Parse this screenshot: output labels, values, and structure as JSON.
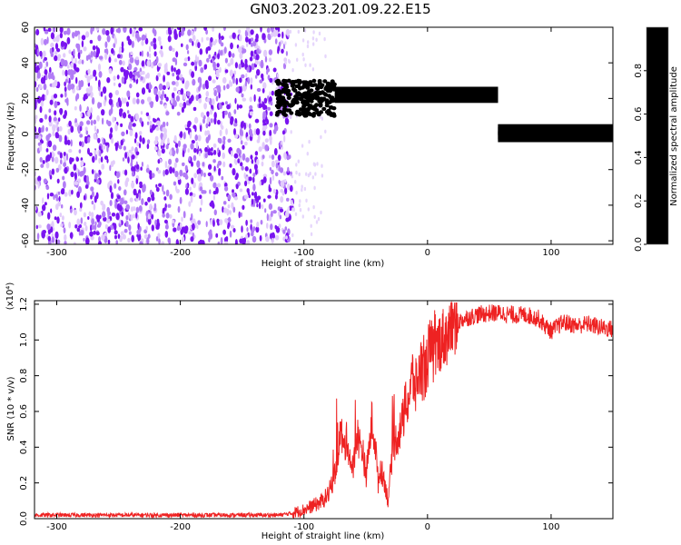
{
  "title": "GN03.2023.201.09.22.E15",
  "chart_data": [
    {
      "type": "heatmap",
      "xlabel": "Height of straight line (km)",
      "ylabel": "Frequency (Hz)",
      "xlim": [
        -318,
        150
      ],
      "ylim": [
        -62,
        60
      ],
      "xticks": [
        -300,
        -200,
        -100,
        0,
        100
      ],
      "yticks": [
        -60,
        -40,
        -20,
        0,
        20,
        40,
        60
      ],
      "colorbar": {
        "label": "Normalized spectral amplitude",
        "range": [
          0.0,
          1.0
        ],
        "ticks": [
          0.0,
          0.2,
          0.4,
          0.6,
          0.8
        ],
        "colors": [
          "#ffffff",
          "#c8a0f0",
          "#7f00ff",
          "#0000ff",
          "#00d8ff",
          "#00ff40",
          "#ffff00",
          "#ff8000",
          "#ff0000",
          "#ff0080"
        ]
      },
      "regions": [
        {
          "name": "broadband noise",
          "x": [
            -318,
            -115
          ],
          "freq": [
            -62,
            60
          ],
          "amplitude": [
            0.0,
            0.1
          ]
        },
        {
          "name": "onset band",
          "x": [
            -122,
            -75
          ],
          "freq": [
            10,
            30
          ],
          "amplitude": [
            0.1,
            0.5
          ]
        },
        {
          "name": "signal tone 1",
          "x": [
            -75,
            57
          ],
          "freq": [
            20,
            24
          ],
          "amplitude": [
            0.3,
            1.0
          ]
        },
        {
          "name": "signal tone 2",
          "x": [
            57,
            150
          ],
          "freq": [
            -2,
            3
          ],
          "amplitude": [
            0.3,
            1.0
          ]
        }
      ]
    },
    {
      "type": "line",
      "xlabel": "Height of straight line (km)",
      "ylabel": "SNR (10 * v/v)",
      "yscale_label": "(x10⁴)",
      "xlim": [
        -318,
        150
      ],
      "ylim": [
        0,
        1.22
      ],
      "xticks": [
        -300,
        -200,
        -100,
        0,
        100
      ],
      "yticks": [
        0.0,
        0.2,
        0.4,
        0.6,
        0.8,
        1.0,
        1.2
      ],
      "color": "#ee2222",
      "series": [
        {
          "x": [
            -318,
            -250,
            -200,
            -150,
            -120,
            -110,
            -100,
            -90,
            -85,
            -80,
            -75,
            -72,
            -70,
            -68,
            -65,
            -62,
            -60,
            -57,
            -55,
            -52,
            -50,
            -48,
            -45,
            -42,
            -40,
            -38,
            -35,
            -32,
            -30,
            -28,
            -25,
            -22,
            -20,
            -18,
            -15,
            -12,
            -10,
            -8,
            -5,
            -2,
            0,
            2,
            5,
            8,
            10,
            15,
            20,
            25,
            30,
            40,
            50,
            60,
            70,
            80,
            90,
            95,
            100,
            110,
            120,
            130,
            140,
            150
          ],
          "y": [
            0.02,
            0.02,
            0.02,
            0.02,
            0.02,
            0.03,
            0.05,
            0.08,
            0.1,
            0.14,
            0.25,
            0.4,
            0.5,
            0.38,
            0.45,
            0.3,
            0.28,
            0.48,
            0.42,
            0.38,
            0.22,
            0.35,
            0.55,
            0.4,
            0.2,
            0.28,
            0.22,
            0.1,
            0.25,
            0.4,
            0.45,
            0.5,
            0.55,
            0.62,
            0.68,
            0.8,
            0.72,
            0.78,
            0.85,
            0.8,
            0.9,
            0.95,
            0.92,
            0.95,
            1.0,
            1.02,
            1.08,
            1.1,
            1.12,
            1.14,
            1.15,
            1.15,
            1.14,
            1.14,
            1.12,
            1.08,
            1.05,
            1.1,
            1.08,
            1.09,
            1.07,
            1.06
          ]
        }
      ]
    }
  ]
}
